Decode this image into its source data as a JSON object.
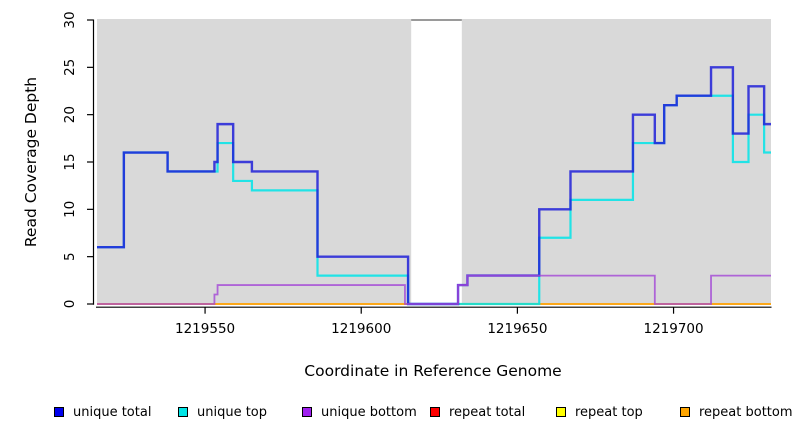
{
  "chart_data": {
    "type": "line",
    "subtype": "step",
    "title": "",
    "xlabel": "Coordinate in Reference Genome",
    "ylabel": "Read Coverage Depth",
    "xlim": [
      1219515.4,
      1219731.2
    ],
    "ylim": [
      0,
      30
    ],
    "grid": false,
    "panel_bg": "#d9d9d9",
    "axis_color": "#000000",
    "legend_position": "bottom",
    "x_ticks": [
      {
        "value": 1219550,
        "label": "1219550"
      },
      {
        "value": 1219600,
        "label": "1219600"
      },
      {
        "value": 1219650,
        "label": "1219650"
      },
      {
        "value": 1219700,
        "label": "1219700"
      }
    ],
    "y_ticks": [
      {
        "value": 0,
        "label": "0"
      },
      {
        "value": 5,
        "label": "5"
      },
      {
        "value": 10,
        "label": "10"
      },
      {
        "value": 15,
        "label": "15"
      },
      {
        "value": 20,
        "label": "20"
      },
      {
        "value": 25,
        "label": "25"
      },
      {
        "value": 30,
        "label": "30"
      }
    ],
    "masked_region": {
      "x_start": 1219616,
      "x_end": 1219632.2,
      "fill": "#ffffff",
      "border_top": "#9a9a9a"
    },
    "draw_order": [
      "repeat total",
      "repeat top",
      "repeat bottom",
      "unique top",
      "unique total",
      "unique bottom"
    ],
    "series": [
      {
        "name": "unique total",
        "color": "#0000ee",
        "line_color": "rgba(32,32,216,0.85)",
        "points": [
          [
            1219515.4,
            6
          ],
          [
            1219524,
            16
          ],
          [
            1219538,
            14
          ],
          [
            1219553,
            15
          ],
          [
            1219554,
            19
          ],
          [
            1219559,
            15
          ],
          [
            1219565,
            14
          ],
          [
            1219586,
            5
          ],
          [
            1219615,
            0
          ],
          [
            1219631,
            2
          ],
          [
            1219634,
            3
          ],
          [
            1219657,
            10
          ],
          [
            1219667,
            14
          ],
          [
            1219687,
            20
          ],
          [
            1219694,
            17
          ],
          [
            1219697,
            21
          ],
          [
            1219701,
            22
          ],
          [
            1219712,
            25
          ],
          [
            1219719,
            18
          ],
          [
            1219724,
            23
          ],
          [
            1219729,
            19
          ]
        ]
      },
      {
        "name": "unique top",
        "color": "#00e5e6",
        "line_color": "rgba(0,228,232,0.85)",
        "points": [
          [
            1219515.4,
            6
          ],
          [
            1219524,
            16
          ],
          [
            1219538,
            14
          ],
          [
            1219554,
            17
          ],
          [
            1219559,
            13
          ],
          [
            1219565,
            12
          ],
          [
            1219586,
            3
          ],
          [
            1219615,
            0
          ],
          [
            1219657,
            7
          ],
          [
            1219667,
            11
          ],
          [
            1219687,
            17
          ],
          [
            1219697,
            21
          ],
          [
            1219701,
            22
          ],
          [
            1219719,
            15
          ],
          [
            1219724,
            20
          ],
          [
            1219729,
            16
          ]
        ]
      },
      {
        "name": "unique bottom",
        "color": "#a020f0",
        "line_color": "rgba(162,70,214,0.8)",
        "points": [
          [
            1219515.4,
            0
          ],
          [
            1219553,
            1
          ],
          [
            1219554,
            2
          ],
          [
            1219614,
            0
          ],
          [
            1219631,
            2
          ],
          [
            1219634,
            3
          ],
          [
            1219694,
            0
          ],
          [
            1219712,
            3
          ]
        ]
      },
      {
        "name": "repeat total",
        "color": "#ff0000",
        "line_color": "rgba(225,20,20,0.9)",
        "points": [
          [
            1219515.4,
            0
          ]
        ]
      },
      {
        "name": "repeat top",
        "color": "#ffff00",
        "line_color": "rgba(255,255,0,0.95)",
        "points": [
          [
            1219515.4,
            0
          ]
        ]
      },
      {
        "name": "repeat bottom",
        "color": "#ffa500",
        "line_color": "rgba(255,162,20,0.95)",
        "points": [
          [
            1219515.4,
            0
          ]
        ]
      }
    ]
  }
}
